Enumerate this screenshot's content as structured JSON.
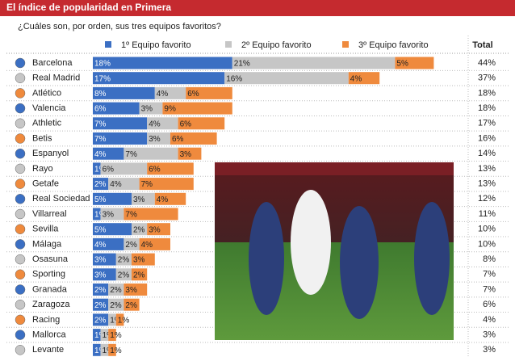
{
  "chart_data": {
    "type": "stacked-bar-horizontal",
    "title": "El índice de popularidad en Primera",
    "subtitle": "¿Cuáles son, por orden, sus tres equipos favoritos?",
    "categories": [
      "Barcelona",
      "Real Madrid",
      "Atlético",
      "Valencia",
      "Athletic",
      "Betis",
      "Espanyol",
      "Rayo",
      "Getafe",
      "Real Sociedad",
      "Villarreal",
      "Sevilla",
      "Málaga",
      "Osasuna",
      "Sporting",
      "Granada",
      "Zaragoza",
      "Racing",
      "Mallorca",
      "Levante"
    ],
    "series": [
      {
        "name": "1º Equipo favorito",
        "color": "#3b6fc3",
        "values": [
          18,
          17,
          8,
          6,
          7,
          7,
          4,
          1,
          2,
          5,
          1,
          5,
          4,
          3,
          3,
          2,
          2,
          2,
          1,
          1
        ],
        "value_labels": [
          "18%",
          "17%",
          "8%",
          "6%",
          "7%",
          "7%",
          "4%",
          "1%",
          "2%",
          "5%",
          "1%",
          "5%",
          "4%",
          "3%",
          "3%",
          "2%",
          "2%",
          "2%",
          "1%",
          "1%"
        ]
      },
      {
        "name": "2º Equipo favorito",
        "color": "#c6c6c6",
        "values": [
          21,
          16,
          4,
          3,
          4,
          3,
          7,
          6,
          4,
          3,
          3,
          2,
          2,
          2,
          2,
          2,
          2,
          1,
          1,
          1
        ],
        "value_labels": [
          "21%",
          "16%",
          "4%",
          "3%",
          "4%",
          "3%",
          "7%",
          "6%",
          "4%",
          "3%",
          "3%",
          "2%",
          "2%",
          "2%",
          "2%",
          "2%",
          "2%",
          "1%",
          "1%",
          "1%"
        ]
      },
      {
        "name": "3º Equipo favorito",
        "color": "#ef8a3d",
        "values": [
          5,
          4,
          6,
          9,
          6,
          6,
          3,
          6,
          7,
          4,
          7,
          3,
          4,
          3,
          2,
          3,
          2,
          1,
          1,
          1
        ],
        "value_labels": [
          "5%",
          "4%",
          "6%",
          "9%",
          "6%",
          "6%",
          "3%",
          "6%",
          "7%",
          "4%",
          "7%",
          "3%",
          "4%",
          "3%",
          "2%",
          "3%",
          "2%",
          "1%",
          "1%",
          "1%"
        ]
      }
    ],
    "total_header": "Total",
    "totals": [
      44,
      37,
      18,
      18,
      17,
      16,
      14,
      13,
      13,
      12,
      11,
      10,
      10,
      8,
      7,
      7,
      6,
      4,
      3,
      3
    ],
    "total_labels": [
      "44%",
      "37%",
      "18%",
      "18%",
      "17%",
      "16%",
      "14%",
      "13%",
      "13%",
      "12%",
      "11%",
      "10%",
      "10%",
      "8%",
      "7%",
      "7%",
      "6%",
      "4%",
      "3%",
      "3%"
    ]
  }
}
